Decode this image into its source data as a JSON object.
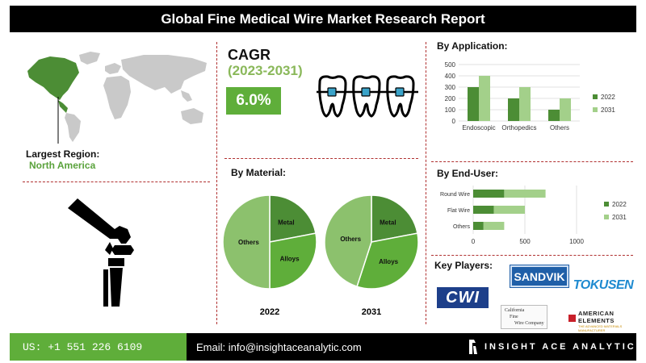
{
  "title": "Global Fine Medical Wire Market Research Report",
  "largest_region": {
    "label": "Largest Region:",
    "value": "North America"
  },
  "cagr": {
    "title": "CAGR",
    "years": "(2023-2031)",
    "value": "6.0%"
  },
  "colors": {
    "accent": "#5fae3a",
    "accent_light": "#a3d08a",
    "dark_green": "#4c8d35",
    "divider": "#b03030"
  },
  "headings": {
    "by_application": "By Application:",
    "by_material": "By Material:",
    "by_end_user": "By End-User:",
    "key_players": "Key Players:"
  },
  "key_players": {
    "sandvik": "SANDVIK",
    "cwi": "CWI",
    "tokusen": "TOKUSEN",
    "cfw_lines": [
      "California",
      "Fine",
      "Wire Company"
    ],
    "american_elements": "AMERICAN ELEMENTS",
    "american_elements_tag": "THE ADVANCED MATERIALS MANUFACTURER"
  },
  "footer": {
    "phone": "US: +1 551 226 6109",
    "email": "Email: info@insightaceanalytic.com",
    "brand": "INSIGHT ACE ANALYTIC"
  },
  "icons": [
    "world-map-icon",
    "knee-joint-icon",
    "teeth-braces-icon",
    "brand-logo-icon"
  ],
  "chart_data": [
    {
      "type": "bar",
      "name": "by-application",
      "categories": [
        "Endoscopic",
        "Orthopedics",
        "Others"
      ],
      "series": [
        {
          "name": "2022",
          "values": [
            300,
            200,
            100
          ],
          "color": "#4c8d35"
        },
        {
          "name": "2031",
          "values": [
            400,
            300,
            200
          ],
          "color": "#a3d08a"
        }
      ],
      "ylim": [
        0,
        500
      ],
      "yticks": [
        0,
        100,
        200,
        300,
        400,
        500
      ],
      "legend": "right"
    },
    {
      "type": "bar",
      "orientation": "horizontal",
      "name": "by-end-user",
      "categories": [
        "Round Wire",
        "Flat Wire",
        "Others"
      ],
      "series": [
        {
          "name": "2022",
          "values": [
            300,
            200,
            100
          ],
          "color": "#4c8d35"
        },
        {
          "name": "2031",
          "values": [
            400,
            300,
            200
          ],
          "color": "#a3d08a"
        }
      ],
      "xlim": [
        0,
        1000
      ],
      "xticks": [
        0,
        500,
        1000
      ],
      "stacked": true,
      "legend": "right"
    },
    {
      "type": "pie",
      "name": "by-material",
      "pies": [
        {
          "label": "2022",
          "slices": [
            {
              "name": "Metal",
              "value": 22,
              "color": "#4c8d35"
            },
            {
              "name": "Alloys",
              "value": 28,
              "color": "#5fae3a"
            },
            {
              "name": "Others",
              "value": 50,
              "color": "#8cc16d"
            }
          ]
        },
        {
          "label": "2031",
          "slices": [
            {
              "name": "Metal",
              "value": 22,
              "color": "#4c8d35"
            },
            {
              "name": "Alloys",
              "value": 33,
              "color": "#5fae3a"
            },
            {
              "name": "Others",
              "value": 45,
              "color": "#8cc16d"
            }
          ]
        }
      ]
    }
  ]
}
